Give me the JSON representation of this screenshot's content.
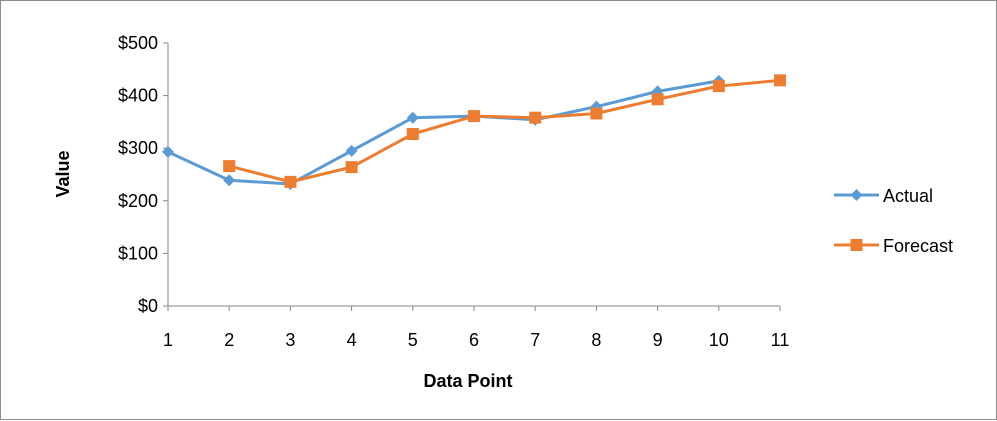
{
  "chart_data": {
    "type": "line",
    "title": "",
    "xlabel": "Data Point",
    "ylabel": "Value",
    "x": [
      1,
      2,
      3,
      4,
      5,
      6,
      7,
      8,
      9,
      10,
      11
    ],
    "xtick_labels": [
      "1",
      "2",
      "3",
      "4",
      "5",
      "6",
      "7",
      "8",
      "9",
      "10",
      "11"
    ],
    "ylim": [
      0,
      500
    ],
    "yticks": [
      0,
      100,
      200,
      300,
      400,
      500
    ],
    "ytick_labels": [
      "$0",
      "$100",
      "$200",
      "$300",
      "$400",
      "$500"
    ],
    "grid": false,
    "legend_position": "right",
    "series": [
      {
        "name": "Actual",
        "color": "#5b9bd5",
        "marker": "diamond",
        "values": [
          293,
          239,
          232,
          295,
          358,
          361,
          354,
          379,
          408,
          428,
          null
        ]
      },
      {
        "name": "Forecast",
        "color": "#ed7d31",
        "marker": "square",
        "values": [
          null,
          266,
          236,
          264,
          327,
          361,
          358,
          366,
          393,
          418,
          429
        ]
      }
    ]
  }
}
